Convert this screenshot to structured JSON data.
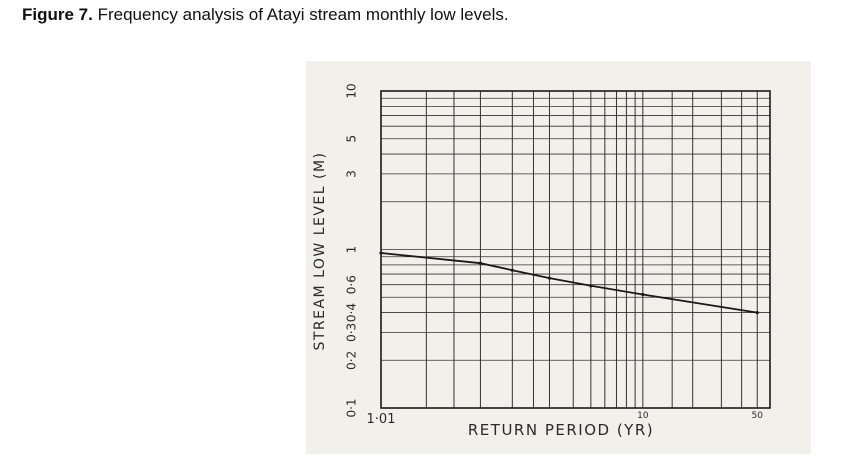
{
  "caption": {
    "label": "Figure 7.",
    "text": " Frequency analysis of Atayi stream monthly low levels."
  },
  "chart_data": {
    "type": "line",
    "title": "",
    "xlabel": "RETURN   PERIOD   (YR)",
    "ylabel": "STREAM   LOW   LEVEL  (M)",
    "x_scale": "probability",
    "y_scale": "log",
    "x_tick_labels": [
      "1·01",
      "10",
      "50"
    ],
    "y_tick_labels": [
      "10",
      "5",
      "3",
      "1",
      "0·6",
      "0·4",
      "0·3",
      "0·2",
      "0·1"
    ],
    "y_tick_values": [
      10,
      5,
      3,
      1,
      0.6,
      0.4,
      0.3,
      0.2,
      0.1
    ],
    "series": [
      {
        "x": [
          1.01,
          1.5,
          2,
          3,
          5,
          10,
          50
        ],
        "y": [
          0.95,
          0.82,
          0.74,
          0.66,
          0.59,
          0.52,
          0.4
        ]
      }
    ],
    "ylim": [
      0.1,
      10
    ],
    "grid": true,
    "colors": {
      "line": "#1a1a1a",
      "grid": "#333333",
      "paper": "#f2f0ea"
    }
  }
}
